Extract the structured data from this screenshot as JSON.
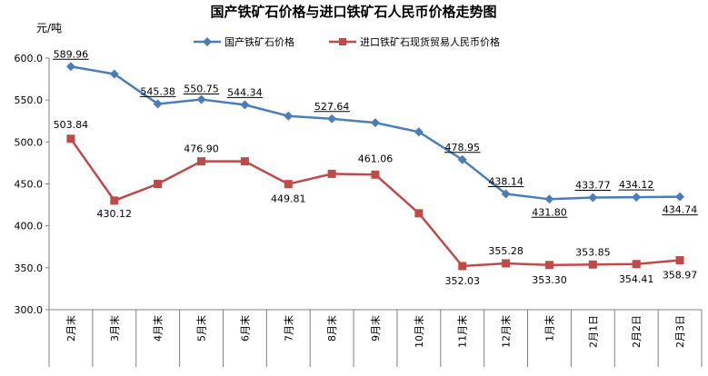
{
  "chart_data": {
    "type": "line",
    "title": "国产铁矿石价格与进口铁矿石人民币价格走势图",
    "unit_label": "元/吨",
    "categories": [
      "2月末",
      "3月末",
      "4月末",
      "5月末",
      "6月末",
      "7月末",
      "8月末",
      "9月末",
      "10月末",
      "11月末",
      "12月末",
      "1月末",
      "2月1日",
      "2月2日",
      "2月3日"
    ],
    "ylim": [
      300,
      600
    ],
    "yticks": [
      "300.0",
      "350.0",
      "400.0",
      "450.0",
      "500.0",
      "550.0",
      "600.0"
    ],
    "legend_position": "top",
    "series": [
      {
        "name": "国产铁矿石价格",
        "color": "#4a7ebb",
        "marker": "diamond",
        "values": [
          589.96,
          581,
          545.38,
          550.75,
          544.34,
          531,
          527.64,
          523,
          512,
          478.95,
          438.14,
          431.8,
          433.77,
          434.12,
          434.74
        ],
        "labels": [
          "589.96",
          null,
          "545.38",
          "550.75",
          "544.34",
          null,
          "527.64",
          null,
          null,
          "478.95",
          "438.14",
          "431.80",
          "433.77",
          "434.12",
          "434.74"
        ]
      },
      {
        "name": "进口铁矿石现货贸易人民币价格",
        "color": "#be4b48",
        "marker": "square",
        "values": [
          503.84,
          430.12,
          450,
          476.9,
          476.9,
          449.81,
          462,
          461.06,
          415,
          352.03,
          355.28,
          353.3,
          353.85,
          354.41,
          358.97
        ],
        "labels": [
          "503.84",
          "430.12",
          null,
          "476.90",
          null,
          "449.81",
          null,
          "461.06",
          null,
          "352.03",
          "355.28",
          "353.30",
          "353.85",
          "354.41",
          "358.97"
        ]
      }
    ]
  }
}
